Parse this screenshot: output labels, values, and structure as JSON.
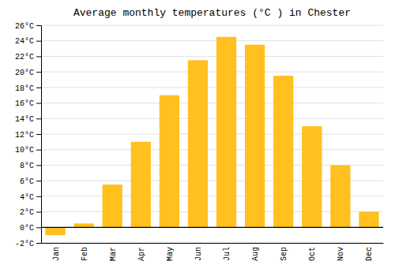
{
  "chart_data": {
    "type": "bar",
    "title": "Average monthly temperatures (°C ) in Chester",
    "categories": [
      "Jan",
      "Feb",
      "Mar",
      "Apr",
      "May",
      "Jun",
      "Jul",
      "Aug",
      "Sep",
      "Oct",
      "Nov",
      "Dec"
    ],
    "values": [
      -1.0,
      0.5,
      5.5,
      11.0,
      17.0,
      21.5,
      24.5,
      23.5,
      19.5,
      13.0,
      8.0,
      2.0
    ],
    "color": "#FFC020",
    "ylim": [
      -2,
      26
    ],
    "yticks": [
      {
        "value": -2,
        "label": "-2°C"
      },
      {
        "value": 0,
        "label": "0°C"
      },
      {
        "value": 2,
        "label": "2°C"
      },
      {
        "value": 4,
        "label": "4°C"
      },
      {
        "value": 6,
        "label": "6°C"
      },
      {
        "value": 8,
        "label": "8°C"
      },
      {
        "value": 10,
        "label": "10°C"
      },
      {
        "value": 12,
        "label": "12°C"
      },
      {
        "value": 14,
        "label": "14°C"
      },
      {
        "value": 16,
        "label": "16°C"
      },
      {
        "value": 18,
        "label": "18°C"
      },
      {
        "value": 20,
        "label": "20°C"
      },
      {
        "value": 22,
        "label": "22°C"
      },
      {
        "value": 24,
        "label": "24°C"
      },
      {
        "value": 26,
        "label": "26°C"
      }
    ],
    "grid": true
  }
}
